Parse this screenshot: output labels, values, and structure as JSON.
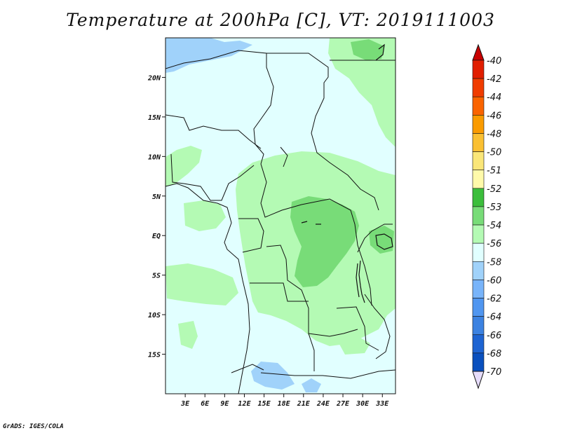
{
  "title": "Temperature at 200hPa [C], VT: 2019111003",
  "credit": "GrADS: IGES/COLA",
  "map": {
    "lon_range": [
      0,
      35
    ],
    "lat_range": [
      -20,
      25
    ],
    "background_color": "#e1ffff",
    "x_ticks": [
      {
        "lon": 3,
        "label": "3E"
      },
      {
        "lon": 6,
        "label": "6E"
      },
      {
        "lon": 9,
        "label": "9E"
      },
      {
        "lon": 12,
        "label": "12E"
      },
      {
        "lon": 15,
        "label": "15E"
      },
      {
        "lon": 18,
        "label": "18E"
      },
      {
        "lon": 21,
        "label": "21E"
      },
      {
        "lon": 24,
        "label": "24E"
      },
      {
        "lon": 27,
        "label": "27E"
      },
      {
        "lon": 30,
        "label": "30E"
      },
      {
        "lon": 33,
        "label": "33E"
      }
    ],
    "y_ticks": [
      {
        "lat": 20,
        "label": "20N"
      },
      {
        "lat": 15,
        "label": "15N"
      },
      {
        "lat": 10,
        "label": "10N"
      },
      {
        "lat": 5,
        "label": "5N"
      },
      {
        "lat": 0,
        "label": "EQ"
      },
      {
        "lat": -5,
        "label": "5S"
      },
      {
        "lat": -10,
        "label": "10S"
      },
      {
        "lat": -15,
        "label": "15S"
      }
    ]
  },
  "colorbar": {
    "levels": [
      {
        "label": "-40",
        "color": "#e11e00"
      },
      {
        "label": "-42",
        "color": "#f03c00"
      },
      {
        "label": "-44",
        "color": "#fa6400"
      },
      {
        "label": "-46",
        "color": "#fa9b00"
      },
      {
        "label": "-48",
        "color": "#fac032"
      },
      {
        "label": "-50",
        "color": "#fae678"
      },
      {
        "label": "-51",
        "color": "#fffaaa"
      },
      {
        "label": "-52",
        "color": "#3cbe3c"
      },
      {
        "label": "-53",
        "color": "#78dc78"
      },
      {
        "label": "-54",
        "color": "#b4fab4"
      },
      {
        "label": "-56",
        "color": "#e1ffff"
      },
      {
        "label": "-58",
        "color": "#a0d2fa"
      },
      {
        "label": "-60",
        "color": "#78b4fa"
      },
      {
        "label": "-62",
        "color": "#5096f0"
      },
      {
        "label": "-64",
        "color": "#3c82e1"
      },
      {
        "label": "-66",
        "color": "#1e64d2"
      },
      {
        "label": "-68",
        "color": "#0a50be"
      },
      {
        "label": "-70",
        "color": "#003c9b"
      }
    ],
    "top_arrow_color": "#c80000",
    "bottom_arrow_color": "#e6dcfa",
    "low_end_color": "#0a1e7d"
  }
}
